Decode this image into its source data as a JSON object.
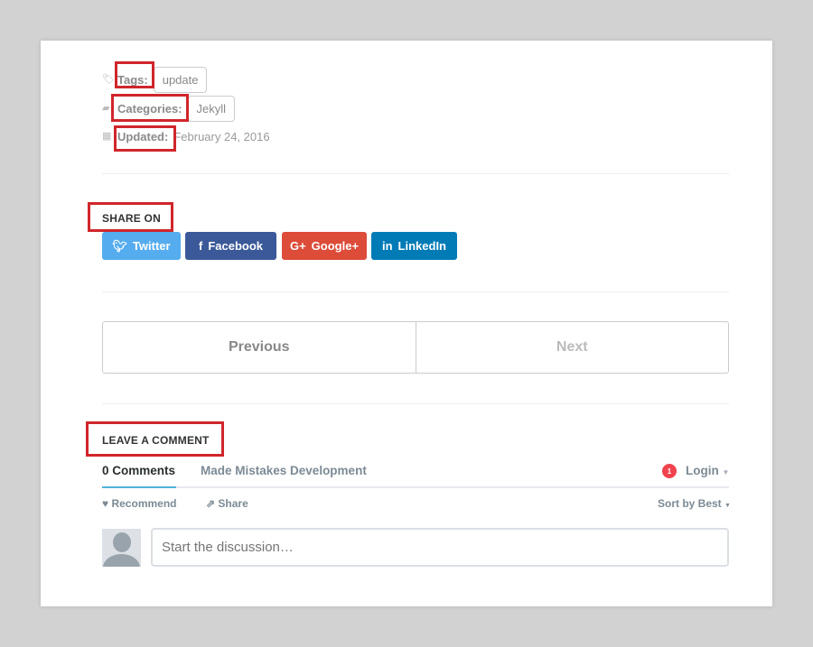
{
  "meta": {
    "tags_label": "Tags:",
    "tags": [
      "update"
    ],
    "categories_label": "Categories:",
    "categories": [
      "Jekyll"
    ],
    "updated_label": "Updated:",
    "updated_value": "February 24, 2016"
  },
  "share": {
    "heading": "SHARE ON",
    "buttons": [
      {
        "label": "Twitter",
        "icon": "twitter-icon",
        "color": "#55acee"
      },
      {
        "label": "Facebook",
        "icon": "facebook-icon",
        "color": "#3b5998"
      },
      {
        "label": "Google+",
        "icon": "google-plus-icon",
        "color": "#dd4b39"
      },
      {
        "label": "LinkedIn",
        "icon": "linkedin-icon",
        "color": "#007bb6"
      }
    ]
  },
  "pager": {
    "previous": "Previous",
    "next": "Next"
  },
  "comments": {
    "heading": "LEAVE A COMMENT",
    "tab_count": "0 Comments",
    "site_name": "Made Mistakes Development",
    "notification_count": "1",
    "login": "Login",
    "recommend": "Recommend",
    "share": "Share",
    "sort": "Sort by Best",
    "placeholder": "Start the discussion…"
  },
  "highlight_color": "#d0262b"
}
